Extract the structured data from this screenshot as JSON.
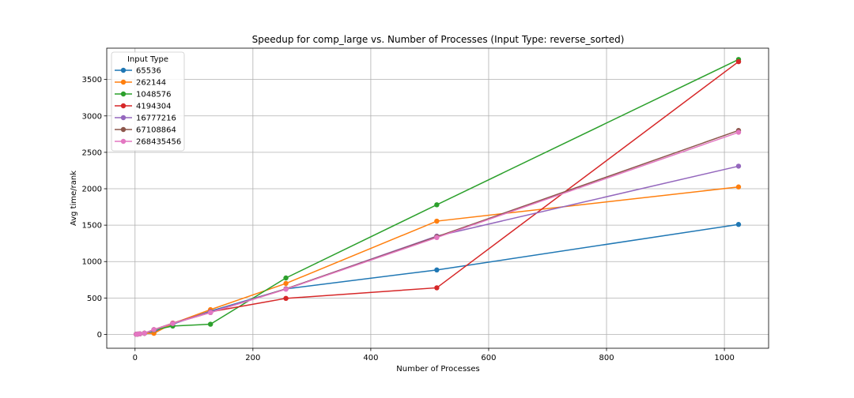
{
  "chart_data": {
    "type": "line",
    "title": "Speedup for comp_large vs. Number of Processes (Input Type: reverse_sorted)",
    "xlabel": "Number of Processes",
    "ylabel": "Avg time/rank",
    "xlim": [
      -48,
      1075
    ],
    "ylim": [
      -190,
      3930
    ],
    "xticks": [
      0,
      200,
      400,
      600,
      800,
      1000
    ],
    "yticks": [
      0,
      500,
      1000,
      1500,
      2000,
      2500,
      3000,
      3500
    ],
    "grid": true,
    "legend": {
      "title": "Input Type",
      "location": "top-left"
    },
    "x": [
      2,
      4,
      8,
      16,
      32,
      64,
      128,
      256,
      512,
      1024
    ],
    "series": [
      {
        "name": "65536",
        "color": "#1f77b4",
        "values": [
          2,
          4,
          8,
          16,
          31,
          140,
          320,
          625,
          885,
          1510
        ]
      },
      {
        "name": "262144",
        "color": "#ff7f0e",
        "values": [
          2,
          4,
          8,
          16,
          15,
          150,
          340,
          700,
          1555,
          2025
        ]
      },
      {
        "name": "1048576",
        "color": "#2ca02c",
        "values": [
          2,
          4,
          8,
          16,
          60,
          115,
          140,
          775,
          1780,
          3775
        ]
      },
      {
        "name": "4194304",
        "color": "#d62728",
        "values": [
          2,
          4,
          8,
          16,
          65,
          155,
          310,
          495,
          640,
          3745
        ]
      },
      {
        "name": "16777216",
        "color": "#9467bd",
        "values": [
          2,
          4,
          8,
          16,
          65,
          150,
          310,
          625,
          1350,
          2310
        ]
      },
      {
        "name": "67108864",
        "color": "#8c564b",
        "values": [
          2,
          4,
          8,
          16,
          65,
          150,
          300,
          625,
          1340,
          2800
        ]
      },
      {
        "name": "268435456",
        "color": "#e377c2",
        "values": [
          2,
          4,
          8,
          16,
          65,
          150,
          300,
          620,
          1330,
          2775
        ]
      }
    ]
  }
}
